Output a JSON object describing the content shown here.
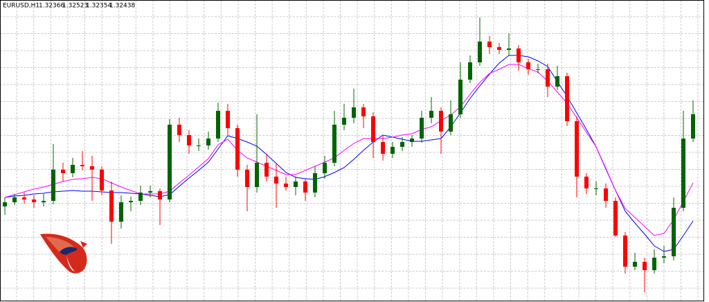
{
  "chart_data": {
    "type": "candlestick",
    "title": "EURUSD,H1",
    "header_ohlc": [
      1.32366,
      1.32523,
      1.32354,
      1.32438
    ],
    "ylim": [
      1.2973,
      1.3409
    ],
    "grid": true,
    "up_color": "#006400",
    "down_color": "#ff0000",
    "open": [
      1.3111,
      1.3117,
      1.3124,
      1.3121,
      1.3117,
      1.3119,
      1.3164,
      1.3159,
      1.3171,
      1.3169,
      1.3164,
      1.3134,
      1.3089,
      1.3117,
      1.3119,
      1.3131,
      1.3133,
      1.3121,
      1.3229,
      1.3214,
      1.3199,
      1.3199,
      1.3209,
      1.3249,
      1.3224,
      1.3164,
      1.3139,
      1.3174,
      1.3154,
      1.3144,
      1.3139,
      1.3147,
      1.3131,
      1.3159,
      1.3174,
      1.3229,
      1.3239,
      1.3254,
      1.3241,
      1.3204,
      1.3187,
      1.3197,
      1.3204,
      1.3209,
      1.3239,
      1.3249,
      1.3219,
      1.3244,
      1.3294,
      1.3319,
      1.3349,
      1.3341,
      1.3337,
      1.3339,
      1.3319,
      1.3309,
      1.3309,
      1.3284,
      1.3299,
      1.3234,
      1.3154,
      1.3137,
      1.3137,
      1.3119,
      1.3069,
      1.3024,
      1.3031,
      1.3019,
      1.3037,
      1.3039,
      1.3109,
      1.3209
    ],
    "high": [
      1.3124,
      1.3129,
      1.3131,
      1.3127,
      1.3129,
      1.3201,
      1.3174,
      1.3181,
      1.3191,
      1.3184,
      1.3169,
      1.3147,
      1.3127,
      1.3125,
      1.3141,
      1.3141,
      1.3137,
      1.3237,
      1.3239,
      1.3221,
      1.3209,
      1.3219,
      1.3261,
      1.3259,
      1.3229,
      1.3171,
      1.3244,
      1.3187,
      1.3174,
      1.3154,
      1.3154,
      1.3151,
      1.3169,
      1.3184,
      1.3249,
      1.3259,
      1.3281,
      1.3259,
      1.3247,
      1.3214,
      1.3204,
      1.3211,
      1.3214,
      1.3249,
      1.3269,
      1.3254,
      1.3264,
      1.3319,
      1.3329,
      1.3384,
      1.3357,
      1.3347,
      1.3361,
      1.3344,
      1.3324,
      1.3317,
      1.3317,
      1.3314,
      1.3304,
      1.3241,
      1.3159,
      1.3147,
      1.3144,
      1.3124,
      1.3074,
      1.3044,
      1.3037,
      1.3049,
      1.3054,
      1.3124,
      1.3249,
      1.3264
    ],
    "low": [
      1.3099,
      1.3113,
      1.3115,
      1.3109,
      1.3111,
      1.3114,
      1.3147,
      1.3153,
      1.3163,
      1.3119,
      1.3127,
      1.3057,
      1.3079,
      1.3104,
      1.3113,
      1.3124,
      1.3084,
      1.3117,
      1.3204,
      1.3187,
      1.3191,
      1.3193,
      1.3204,
      1.3214,
      1.3154,
      1.3104,
      1.3131,
      1.3147,
      1.3109,
      1.3134,
      1.3127,
      1.3119,
      1.3124,
      1.3151,
      1.3169,
      1.3221,
      1.3231,
      1.3224,
      1.3181,
      1.3177,
      1.3181,
      1.3191,
      1.3197,
      1.3203,
      1.3231,
      1.3187,
      1.3214,
      1.3239,
      1.3289,
      1.3314,
      1.3331,
      1.3331,
      1.3329,
      1.3307,
      1.3301,
      1.3303,
      1.3269,
      1.3279,
      1.3227,
      1.3124,
      1.3129,
      1.3127,
      1.3109,
      1.3067,
      1.3014,
      1.3019,
      1.2987,
      1.3014,
      1.3029,
      1.3033,
      1.3104,
      1.3204
    ],
    "close": [
      1.3117,
      1.3124,
      1.3121,
      1.3117,
      1.3119,
      1.3164,
      1.3159,
      1.3171,
      1.3169,
      1.3164,
      1.3134,
      1.3089,
      1.3117,
      1.3119,
      1.3131,
      1.3133,
      1.3121,
      1.3229,
      1.3214,
      1.3199,
      1.3199,
      1.3209,
      1.3249,
      1.3224,
      1.3164,
      1.3139,
      1.3174,
      1.3154,
      1.3144,
      1.3139,
      1.3147,
      1.3131,
      1.3159,
      1.3174,
      1.3229,
      1.3239,
      1.3254,
      1.3241,
      1.3204,
      1.3187,
      1.3197,
      1.3204,
      1.3209,
      1.3239,
      1.3249,
      1.3219,
      1.3244,
      1.3294,
      1.3319,
      1.3349,
      1.3341,
      1.3337,
      1.3339,
      1.3319,
      1.3309,
      1.3309,
      1.3284,
      1.3299,
      1.3234,
      1.3154,
      1.3137,
      1.3137,
      1.3119,
      1.3069,
      1.3024,
      1.3031,
      1.3019,
      1.3037,
      1.3039,
      1.3109,
      1.3209,
      1.3244
    ],
    "lines": [
      {
        "color": "#0000ff",
        "values": [
          1.3124,
          1.3126,
          1.3127,
          1.3129,
          1.313,
          1.3132,
          1.3133,
          1.3134,
          1.3133,
          1.3133,
          1.3132,
          1.3131,
          1.3131,
          1.313,
          1.3129,
          1.3127,
          1.3125,
          1.3128,
          1.314,
          1.3152,
          1.3163,
          1.3175,
          1.3194,
          1.3213,
          1.3209,
          1.3204,
          1.3198,
          1.3186,
          1.3173,
          1.316,
          1.3153,
          1.3151,
          1.315,
          1.3154,
          1.316,
          1.3167,
          1.3179,
          1.3192,
          1.3204,
          1.3214,
          1.3211,
          1.3208,
          1.3205,
          1.3205,
          1.3207,
          1.3209,
          1.3226,
          1.3246,
          1.3267,
          1.3285,
          1.3302,
          1.3318,
          1.3329,
          1.3329,
          1.3327,
          1.3321,
          1.3313,
          1.3291,
          1.327,
          1.3246,
          1.3222,
          1.3197,
          1.3165,
          1.3134,
          1.3104,
          1.3087,
          1.3071,
          1.3054,
          1.3046,
          1.3049,
          1.3069,
          1.309
        ]
      },
      {
        "color": "#ff00ff",
        "values": [
          1.3124,
          1.3128,
          1.3132,
          1.3136,
          1.3139,
          1.3143,
          1.3147,
          1.315,
          1.3151,
          1.3153,
          1.3151,
          1.3145,
          1.3139,
          1.3134,
          1.3129,
          1.3129,
          1.3129,
          1.3133,
          1.3145,
          1.3156,
          1.3168,
          1.318,
          1.32,
          1.3208,
          1.3192,
          1.3181,
          1.3175,
          1.3169,
          1.3163,
          1.3157,
          1.3157,
          1.3163,
          1.3169,
          1.3175,
          1.3181,
          1.3192,
          1.3202,
          1.3209,
          1.3209,
          1.3209,
          1.3211,
          1.3214,
          1.3216,
          1.3222,
          1.3226,
          1.3235,
          1.3243,
          1.3255,
          1.3273,
          1.329,
          1.3303,
          1.3309,
          1.3316,
          1.3316,
          1.331,
          1.3305,
          1.3292,
          1.3276,
          1.326,
          1.3239,
          1.3218,
          1.3197,
          1.3166,
          1.3134,
          1.3108,
          1.3095,
          1.3082,
          1.3069,
          1.3072,
          1.3092,
          1.3118,
          1.3145
        ]
      }
    ]
  }
}
